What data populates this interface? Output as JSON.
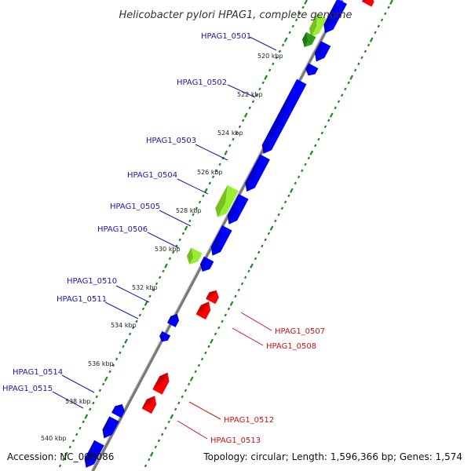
{
  "title": "Helicobacter pylori HPAG1, complete genome",
  "footer": {
    "accession": "Accession: NC_008086",
    "summary": "Topology: circular; Length: 1,596,366 bp; Genes: 1,574"
  },
  "colors": {
    "backbone": "#7a7a7a",
    "forward_cds": "#0000ff",
    "reverse_cds": "#ff0000",
    "highlight_light": "#99ee33",
    "highlight_dark": "#339922",
    "gc_ticks": "#228822",
    "label_blue": "#1a1aaa",
    "label_red": "#cc1111"
  },
  "scale_ticks_kbp": [
    "520 kbp",
    "522 kbp",
    "524 kbp",
    "526 kbp",
    "528 kbp",
    "530 kbp",
    "532 kbp",
    "534 kbp",
    "536 kbp",
    "538 kbp",
    "540 kbp"
  ],
  "gene_labels": {
    "left": [
      "HPAG1_0501",
      "HPAG1_0502",
      "HPAG1_0503",
      "HPAG1_0504",
      "HPAG1_0505",
      "HPAG1_0506",
      "HPAG1_0510",
      "HPAG1_0511",
      "HPAG1_0514",
      "HPAG1_0515"
    ],
    "right": [
      "HPAG1_0507",
      "HPAG1_0508",
      "HPAG1_0512",
      "HPAG1_0513"
    ]
  }
}
